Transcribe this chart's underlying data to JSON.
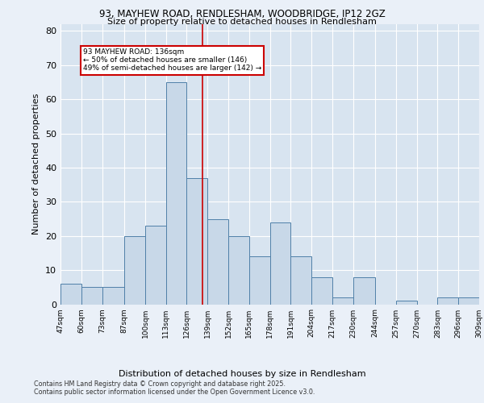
{
  "title1": "93, MAYHEW ROAD, RENDLESHAM, WOODBRIDGE, IP12 2GZ",
  "title2": "Size of property relative to detached houses in Rendlesham",
  "xlabel": "Distribution of detached houses by size in Rendlesham",
  "ylabel": "Number of detached properties",
  "footnote1": "Contains HM Land Registry data © Crown copyright and database right 2025.",
  "footnote2": "Contains public sector information licensed under the Open Government Licence v3.0.",
  "annotation_title": "93 MAYHEW ROAD: 136sqm",
  "annotation_line1": "← 50% of detached houses are smaller (146)",
  "annotation_line2": "49% of semi-detached houses are larger (142) →",
  "property_size": 136,
  "red_line_x": 136,
  "bar_color": "#c8d8e8",
  "bar_edge_color": "#5080a8",
  "red_line_color": "#cc0000",
  "background_color": "#eaf0f8",
  "plot_bg_color": "#d8e4f0",
  "grid_color": "#ffffff",
  "bins": [
    47,
    60,
    73,
    87,
    100,
    113,
    126,
    139,
    152,
    165,
    178,
    191,
    204,
    217,
    230,
    244,
    257,
    270,
    283,
    296,
    309
  ],
  "counts": [
    6,
    5,
    5,
    20,
    23,
    65,
    37,
    25,
    20,
    14,
    24,
    14,
    8,
    2,
    8,
    0,
    1,
    0,
    2,
    2
  ],
  "ylim": [
    0,
    82
  ],
  "yticks": [
    0,
    10,
    20,
    30,
    40,
    50,
    60,
    70,
    80
  ]
}
